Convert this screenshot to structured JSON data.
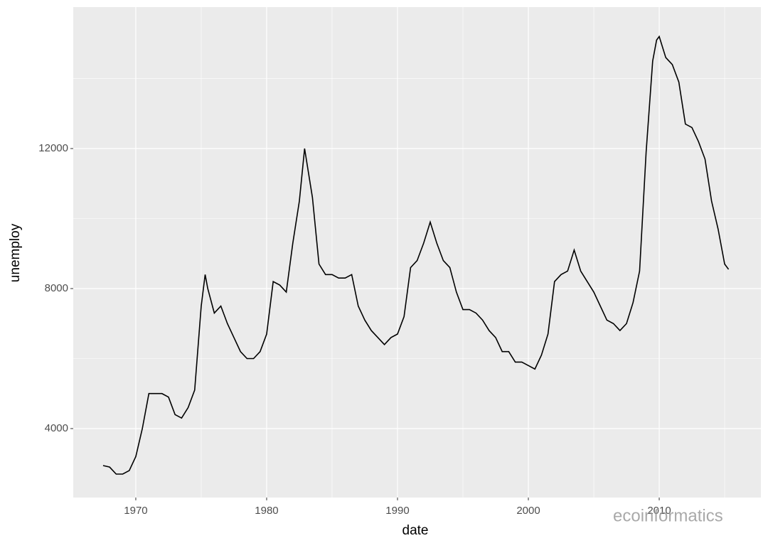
{
  "chart_data": {
    "type": "line",
    "x_label": "date",
    "y_label": "unemploy",
    "watermark": "ecoinformatics",
    "x": [
      1967.5,
      1968,
      1968.5,
      1969,
      1969.5,
      1970,
      1970.5,
      1971,
      1971.5,
      1972,
      1972.5,
      1973,
      1973.5,
      1974,
      1974.5,
      1975,
      1975.3,
      1975.5,
      1976,
      1976.5,
      1977,
      1977.5,
      1978,
      1978.5,
      1979,
      1979.5,
      1980,
      1980.5,
      1981,
      1981.5,
      1982,
      1982.5,
      1982.9,
      1983.2,
      1983.5,
      1984,
      1984.5,
      1985,
      1985.5,
      1986,
      1986.5,
      1987,
      1987.5,
      1988,
      1988.5,
      1989,
      1989.5,
      1990,
      1990.5,
      1991,
      1991.5,
      1992,
      1992.5,
      1993,
      1993.5,
      1994,
      1994.5,
      1995,
      1995.5,
      1996,
      1996.5,
      1997,
      1997.5,
      1998,
      1998.5,
      1999,
      1999.5,
      2000,
      2000.5,
      2001,
      2001.5,
      2002,
      2002.5,
      2003,
      2003.5,
      2004,
      2004.5,
      2005,
      2005.5,
      2006,
      2006.5,
      2007,
      2007.5,
      2008,
      2008.5,
      2009,
      2009.5,
      2009.8,
      2010,
      2010.5,
      2011,
      2011.5,
      2012,
      2012.5,
      2013,
      2013.5,
      2014,
      2014.5,
      2015,
      2015.3
    ],
    "series": [
      {
        "name": "unemploy",
        "color": "#000000",
        "values": [
          2944,
          2900,
          2700,
          2700,
          2800,
          3200,
          4000,
          5000,
          5000,
          5000,
          4900,
          4400,
          4300,
          4600,
          5100,
          7500,
          8400,
          8000,
          7300,
          7500,
          7000,
          6600,
          6200,
          6000,
          6000,
          6200,
          6700,
          8200,
          8100,
          7900,
          9300,
          10500,
          12000,
          11300,
          10600,
          8700,
          8400,
          8400,
          8300,
          8300,
          8400,
          7500,
          7100,
          6800,
          6600,
          6400,
          6600,
          6700,
          7200,
          8600,
          8800,
          9300,
          9900,
          9300,
          8800,
          8600,
          7900,
          7400,
          7400,
          7300,
          7100,
          6800,
          6600,
          6200,
          6200,
          5900,
          5900,
          5800,
          5700,
          6100,
          6700,
          8200,
          8400,
          8500,
          9100,
          8500,
          8200,
          7900,
          7500,
          7100,
          7000,
          6800,
          7000,
          7600,
          8500,
          11900,
          14500,
          15100,
          15200,
          14600,
          14400,
          13900,
          12700,
          12600,
          12200,
          11700,
          10500,
          9700,
          8700,
          8549
        ]
      }
    ],
    "xlim": [
      1965.22,
      2017.77
    ],
    "ylim": [
      2030,
      16041
    ],
    "xticks": [
      1970,
      1980,
      1990,
      2000,
      2010
    ],
    "yticks": [
      4000,
      8000,
      12000
    ],
    "xminor": [
      1975,
      1985,
      1995,
      2005,
      2015
    ],
    "yminor": [
      6000,
      10000,
      14000
    ],
    "grid": true,
    "background": "#EBEBEB"
  }
}
